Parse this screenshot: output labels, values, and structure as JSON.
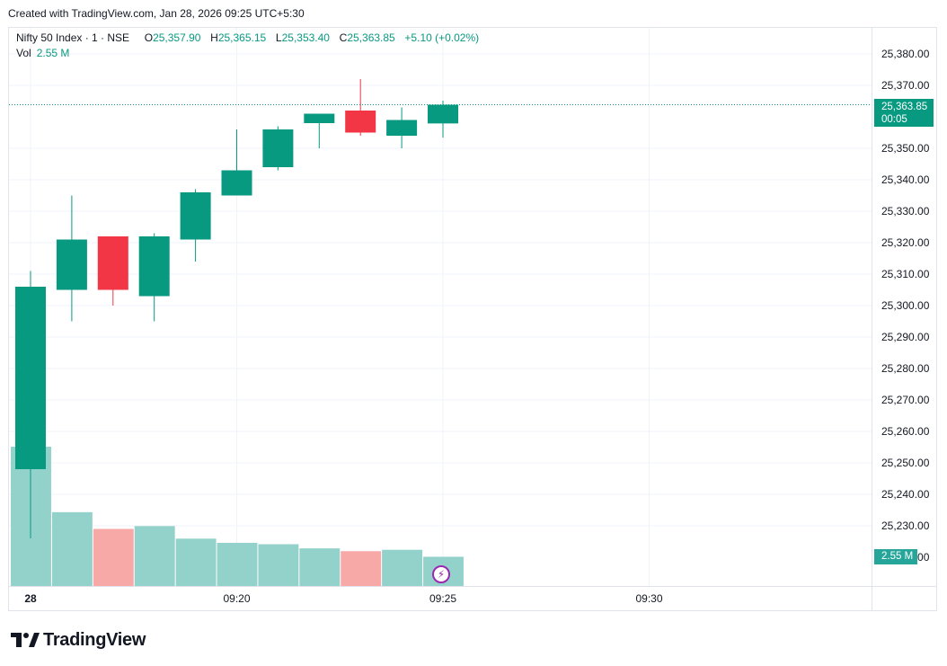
{
  "header": {
    "created_text": "Created with TradingView.com, Jan 28, 2026 09:25 UTC+5:30"
  },
  "legend": {
    "symbol": "Nifty 50 Index · 1 · NSE",
    "o_label": "O",
    "o_value": "25,357.90",
    "h_label": "H",
    "h_value": "25,365.15",
    "l_label": "L",
    "l_value": "25,353.40",
    "c_label": "C",
    "c_value": "25,363.85",
    "change": "+5.10 (+0.02%)",
    "vol_label": "Vol",
    "vol_value": "2.55 M"
  },
  "price_tag": {
    "price": "25,363.85",
    "countdown": "00:05"
  },
  "vol_tag": "2.55 M",
  "brand": {
    "name": "TradingView"
  },
  "colors": {
    "up": "#089981",
    "down": "#f23645",
    "vol_up": "#93d2ca",
    "vol_down": "#f7a9a7",
    "grid": "#f0f3fa",
    "text": "#131722"
  },
  "chart_data": {
    "type": "candlestick",
    "y_axis": {
      "min": 25220,
      "max": 25380,
      "ticks": [
        "25,380.00",
        "25,370.00",
        "25,350.00",
        "25,340.00",
        "25,330.00",
        "25,320.00",
        "25,310.00",
        "25,300.00",
        "25,290.00",
        "25,280.00",
        "25,270.00",
        "25,260.00",
        "25,250.00",
        "25,240.00",
        "25,230.00"
      ],
      "tick_values": [
        25380,
        25370,
        25350,
        25340,
        25330,
        25320,
        25310,
        25300,
        25290,
        25280,
        25270,
        25260,
        25250,
        25240,
        25230
      ]
    },
    "x_axis": {
      "labels": [
        "28",
        "09:20",
        "09:25",
        "09:30"
      ],
      "label_bar_index": [
        0,
        5,
        10,
        15
      ]
    },
    "last_price": 25363.85,
    "candles": [
      {
        "o": 25248,
        "h": 25311,
        "l": 25226,
        "c": 25306
      },
      {
        "o": 25305,
        "h": 25335,
        "l": 25295,
        "c": 25321
      },
      {
        "o": 25322,
        "h": 25322,
        "l": 25300,
        "c": 25305
      },
      {
        "o": 25303,
        "h": 25323,
        "l": 25295,
        "c": 25322
      },
      {
        "o": 25321,
        "h": 25337,
        "l": 25314,
        "c": 25336
      },
      {
        "o": 25335,
        "h": 25356,
        "l": 25335,
        "c": 25343
      },
      {
        "o": 25344,
        "h": 25357,
        "l": 25343,
        "c": 25356
      },
      {
        "o": 25358,
        "h": 25361,
        "l": 25350,
        "c": 25361
      },
      {
        "o": 25362,
        "h": 25372,
        "l": 25354,
        "c": 25355
      },
      {
        "o": 25354,
        "h": 25363,
        "l": 25350,
        "c": 25359
      },
      {
        "o": 25357.9,
        "h": 25365.15,
        "l": 25353.4,
        "c": 25363.85
      }
    ],
    "volume_relative": [
      1.0,
      0.53,
      0.41,
      0.43,
      0.34,
      0.31,
      0.3,
      0.27,
      0.25,
      0.26,
      0.21
    ]
  }
}
